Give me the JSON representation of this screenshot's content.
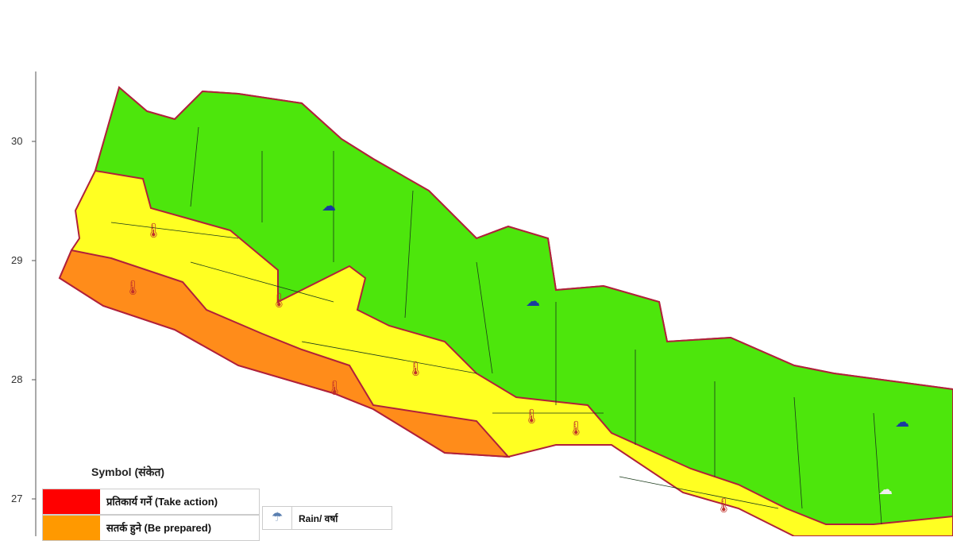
{
  "axis": {
    "y_ticks": [
      "30",
      "29",
      "28",
      "27"
    ]
  },
  "colors": {
    "take_action": "#ff0000",
    "be_prepared": "#ff9900",
    "be_updated": "#ffff22",
    "no_warning": "#4de60c",
    "district_border": "#1a3a1a",
    "province_border": "#b0203a"
  },
  "legend": {
    "title": "Symbol (संकेत)",
    "levels": [
      {
        "label": "प्रतिकार्य गर्ने (Take action)",
        "color": "#ff0000"
      },
      {
        "label": "सतर्क हुने (Be prepared)",
        "color": "#ff9900"
      }
    ],
    "symbols": [
      {
        "icon": "rain-cloud-icon",
        "label": "Rain/ वर्षा"
      }
    ]
  },
  "map_icons": [
    "snow-storm-icon",
    "heat-thermometer-icon",
    "cold-wave-icon",
    "rain-cloud-icon"
  ]
}
